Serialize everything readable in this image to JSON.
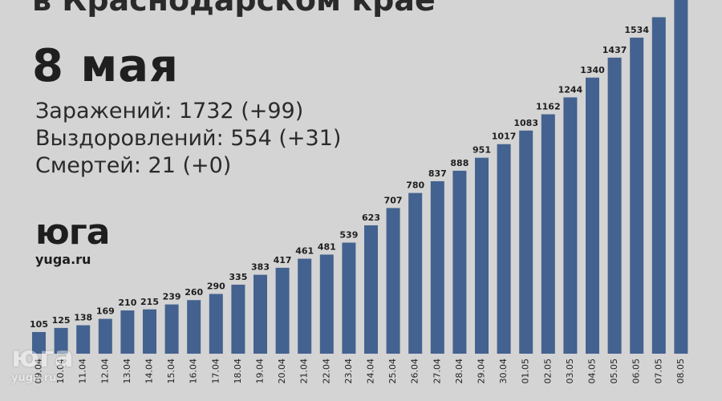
{
  "header": {
    "subtitle": "в Краснодарском крае",
    "date": "8 мая"
  },
  "stats": {
    "infected": "Заражений: 1732 (+99)",
    "recovered": "Выздоровлений: 554 (+31)",
    "deaths": "Смертей: 21 (+0)"
  },
  "logo": {
    "mark": "юга",
    "site": "yuga.ru"
  },
  "watermark": {
    "mark": "юга",
    "site": "yuga.ru"
  },
  "colors": {
    "background": "#d4d4d4",
    "bar": "#44628f"
  },
  "chart_data": {
    "type": "bar",
    "title": "",
    "xlabel": "",
    "ylabel": "",
    "categories": [
      "09.04",
      "10.04",
      "11.04",
      "12.04",
      "13.04",
      "14.04",
      "15.04",
      "16.04",
      "17.04",
      "18.04",
      "19.04",
      "20.04",
      "21.04",
      "22.04",
      "23.04",
      "24.04",
      "25.04",
      "26.04",
      "27.04",
      "28.04",
      "29.04",
      "30.04",
      "01.05",
      "02.05",
      "03.05",
      "04.05",
      "05.05",
      "06.05",
      "07.05",
      "08.05"
    ],
    "values": [
      105,
      125,
      138,
      169,
      210,
      215,
      239,
      260,
      290,
      335,
      383,
      417,
      461,
      481,
      539,
      623,
      707,
      780,
      837,
      888,
      951,
      1017,
      1083,
      1162,
      1244,
      1340,
      1437,
      1534,
      1633,
      1732
    ],
    "value_labels": [
      "105",
      "125",
      "138",
      "169",
      "210",
      "215",
      "239",
      "260",
      "290",
      "335",
      "383",
      "417",
      "461",
      "481",
      "539",
      "623",
      "707",
      "780",
      "837",
      "888",
      "951",
      "1017",
      "1083",
      "1162",
      "1244",
      "1340",
      "1437",
      "1534",
      "",
      ""
    ],
    "grid": false,
    "legend": "none"
  }
}
